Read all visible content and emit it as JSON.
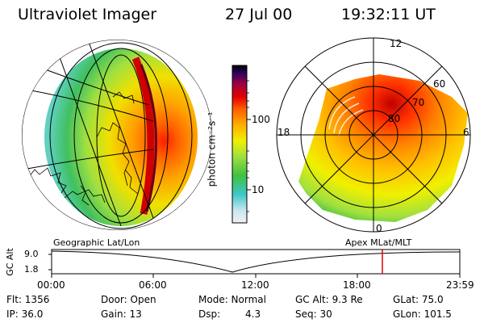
{
  "header": {
    "instrument": "Ultraviolet Imager",
    "date": "27 Jul 00",
    "time": "19:32:11 UT"
  },
  "colorbar": {
    "label": "photon cm⁻²s⁻¹",
    "ticks": [
      "100",
      "10"
    ]
  },
  "left_map": {
    "caption": "Geographic Lat/Lon"
  },
  "right_map": {
    "caption": "Apex MLat/MLT",
    "mlt_labels": [
      "12",
      "18",
      "6",
      "0"
    ],
    "lat_labels": [
      "60",
      "70",
      "80"
    ]
  },
  "altitude_strip": {
    "ylabel": "GC Alt",
    "y_ticks": [
      "9.0",
      "1.8"
    ],
    "x_ticks": [
      "00:00",
      "06:00",
      "12:00",
      "18:00",
      "23:59"
    ],
    "cursor_time": "19:32"
  },
  "status": {
    "flt": "Flt: 1356",
    "ip": "IP: 36.0",
    "door": "Door: Open",
    "gain": "Gain: 13",
    "mode": "Mode: Normal",
    "dsp_label": "Dsp:",
    "dsp_value": "4.3",
    "gc_alt": "GC Alt: 9.3 Re",
    "seq": "Seq: 30",
    "glat": "GLat: 75.0",
    "glon": "GLon: 101.5"
  }
}
